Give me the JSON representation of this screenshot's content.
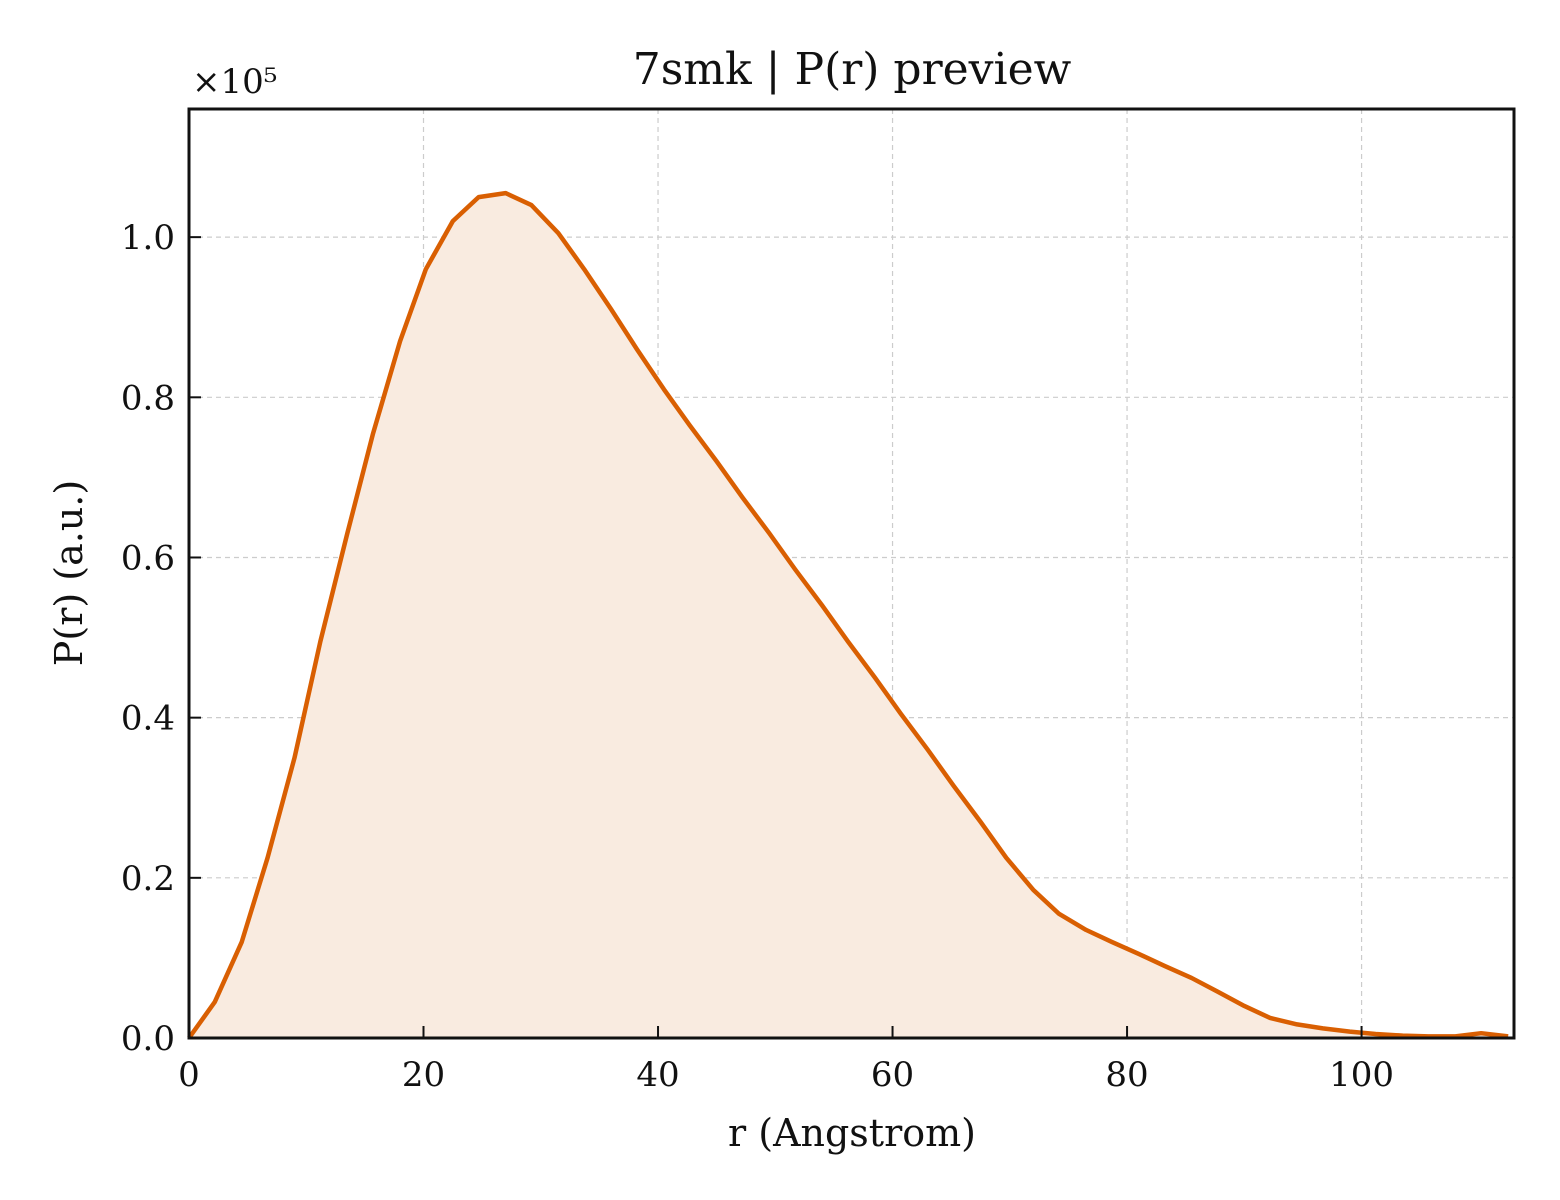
{
  "chart_data": {
    "type": "area",
    "title": "7smk | P(r) preview",
    "xlabel": "r (Angstrom)",
    "ylabel": "P(r) (a.u.)",
    "y_multiplier_label": "×10⁵",
    "xlim": [
      0,
      113
    ],
    "ylim": [
      0,
      1.16
    ],
    "xticks": [
      0,
      20,
      40,
      60,
      80,
      100
    ],
    "yticks": [
      0.0,
      0.2,
      0.4,
      0.6,
      0.8,
      1.0
    ],
    "xtick_labels": [
      "0",
      "20",
      "40",
      "60",
      "80",
      "100"
    ],
    "ytick_labels": [
      "0.0",
      "0.2",
      "0.4",
      "0.6",
      "0.8",
      "1.0"
    ],
    "grid": true,
    "line_color": "#d95f02",
    "fill_color": "#f9ebe0",
    "series": [
      {
        "x": [
          0,
          2.2,
          4.5,
          6.7,
          9.0,
          11.2,
          13.5,
          15.7,
          18.0,
          20.2,
          22.5,
          24.7,
          27.0,
          29.2,
          31.5,
          33.7,
          36.0,
          38.2,
          40.5,
          42.7,
          45.0,
          47.2,
          49.5,
          51.7,
          54.0,
          56.2,
          58.5,
          60.7,
          63.0,
          65.2,
          67.5,
          69.7,
          72.0,
          74.2,
          76.5,
          78.7,
          81.0,
          83.2,
          85.5,
          87.7,
          90.0,
          92.2,
          94.5,
          96.7,
          99.0,
          101.2,
          103.5,
          105.7,
          108.0,
          110.2,
          112.5
        ],
        "y": [
          0.0,
          0.045,
          0.12,
          0.225,
          0.35,
          0.495,
          0.63,
          0.755,
          0.87,
          0.96,
          1.02,
          1.05,
          1.055,
          1.04,
          1.005,
          0.96,
          0.91,
          0.86,
          0.81,
          0.765,
          0.72,
          0.675,
          0.63,
          0.585,
          0.54,
          0.495,
          0.45,
          0.405,
          0.36,
          0.315,
          0.27,
          0.225,
          0.185,
          0.155,
          0.135,
          0.12,
          0.105,
          0.09,
          0.075,
          0.058,
          0.04,
          0.025,
          0.017,
          0.012,
          0.008,
          0.005,
          0.003,
          0.002,
          0.002,
          0.006,
          0.002
        ]
      }
    ]
  }
}
